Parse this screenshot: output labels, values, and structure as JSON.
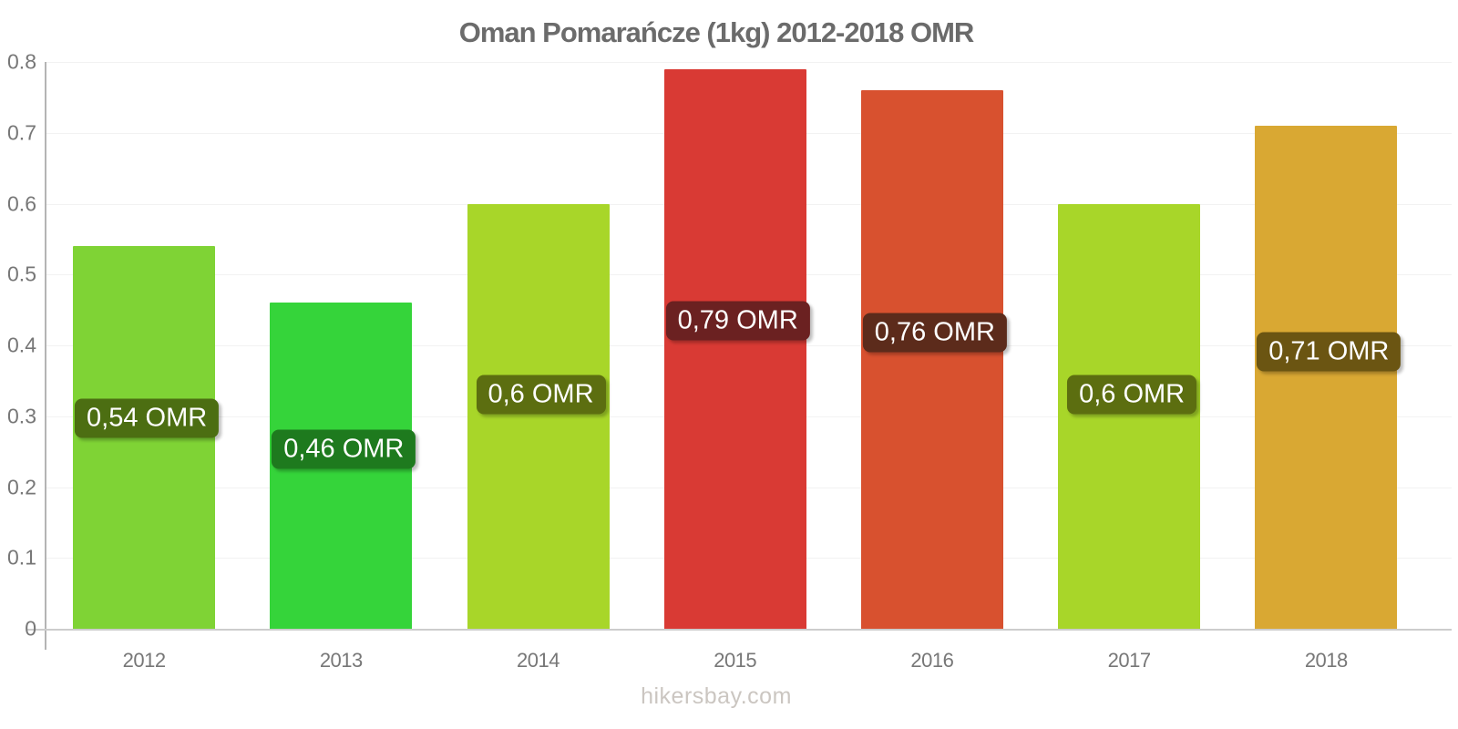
{
  "watermark": "hikersbay.com",
  "chart_data": {
    "type": "bar",
    "title": "Oman Pomarańcze (1kg) 2012-2018 OMR",
    "xlabel": "",
    "ylabel": "",
    "categories": [
      "2012",
      "2013",
      "2014",
      "2015",
      "2016",
      "2017",
      "2018"
    ],
    "values": [
      0.54,
      0.46,
      0.6,
      0.79,
      0.76,
      0.6,
      0.71
    ],
    "value_labels": [
      "0,54 OMR",
      "0,46 OMR",
      "0,6 OMR",
      "0,79 OMR",
      "0,76 OMR",
      "0,6 OMR",
      "0,71 OMR"
    ],
    "bar_colors": [
      "#7fd335",
      "#35d43a",
      "#a8d629",
      "#d93a34",
      "#d8512f",
      "#a8d629",
      "#d9a833"
    ],
    "label_bg_colors": [
      "#4c6e12",
      "#1e7a1e",
      "#5c6e10",
      "#6b2121",
      "#5c2b1b",
      "#5c6e10",
      "#6b5512"
    ],
    "label_text_color": "#ffffff",
    "unit": "OMR",
    "ylim": [
      0,
      0.8
    ],
    "yticks": [
      0,
      0.1,
      0.2,
      0.3,
      0.4,
      0.5,
      0.6,
      0.7,
      0.8
    ],
    "ytick_labels": [
      "0",
      "0.1",
      "0.2",
      "0.3",
      "0.4",
      "0.5",
      "0.6",
      "0.7",
      "0.8"
    ],
    "grid": true,
    "legend": false
  }
}
